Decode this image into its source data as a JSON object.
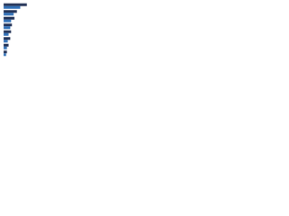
{
  "chart_data": {
    "type": "hbar",
    "categories": [
      null,
      null,
      null,
      null,
      null,
      null,
      null,
      null
    ],
    "series": [
      {
        "color": "#1f2f54",
        "values": [
          28,
          16,
          13,
          10,
          9,
          8,
          6,
          4
        ]
      },
      {
        "color": "#2e6fb7",
        "values": [
          20,
          12,
          9,
          8,
          6,
          5,
          4,
          3
        ]
      }
    ],
    "xlim": [
      0,
      100
    ]
  }
}
